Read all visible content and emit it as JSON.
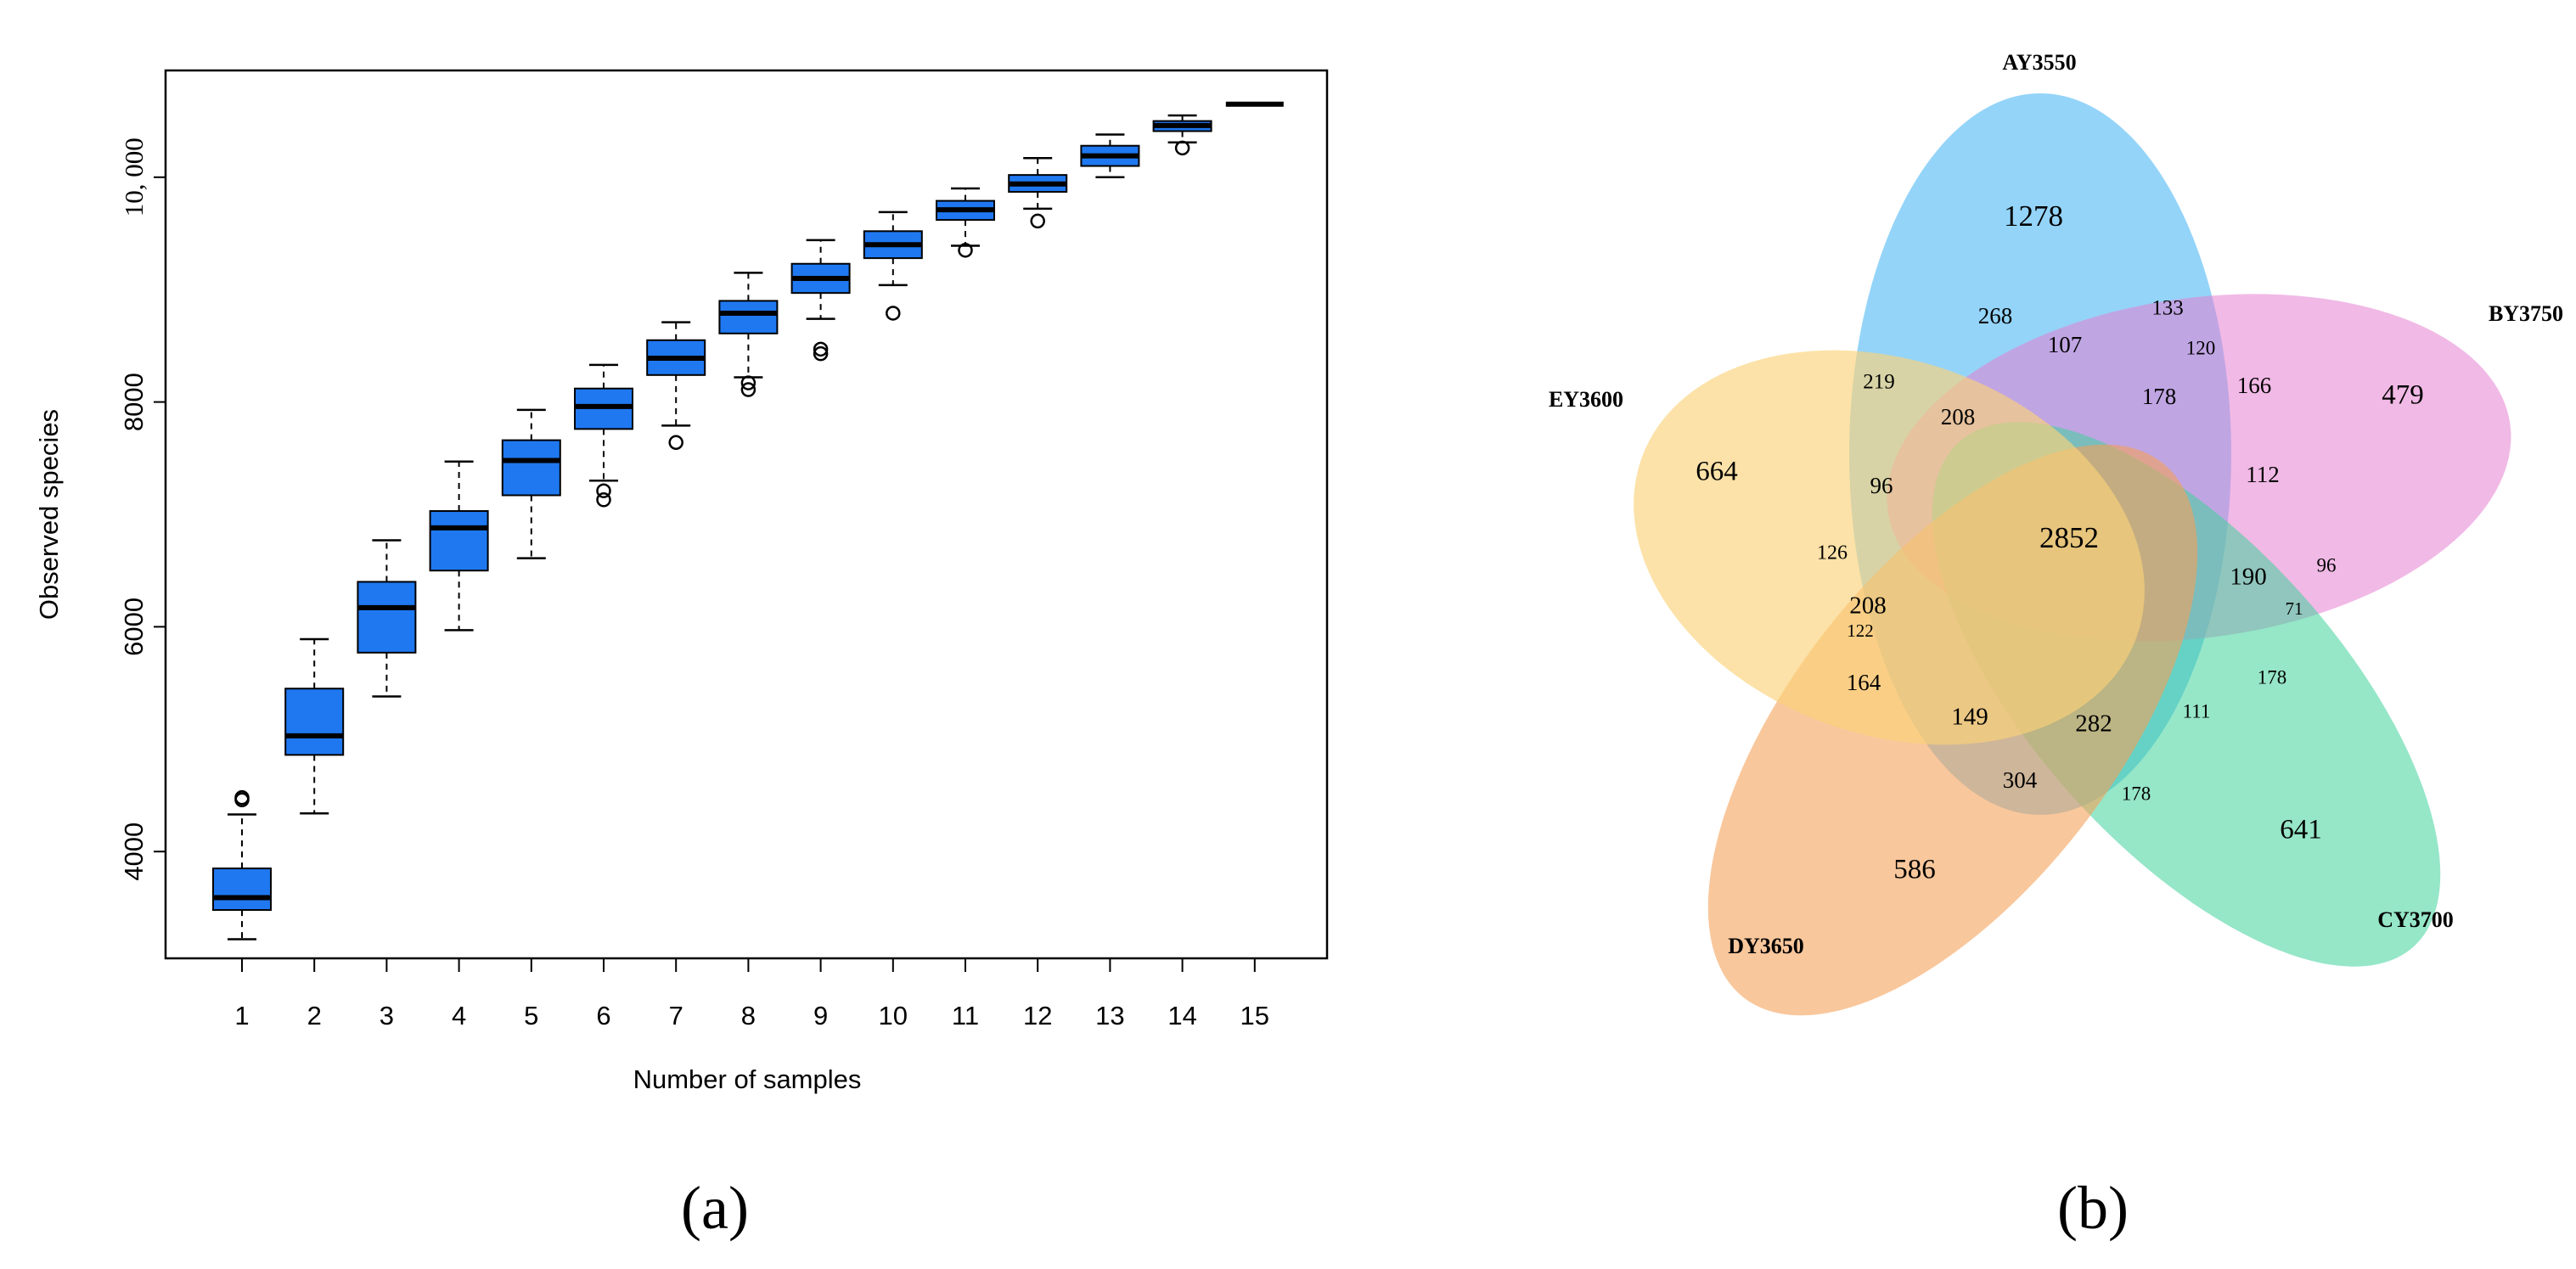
{
  "panel_a": {
    "label": "(a)",
    "chart_data": {
      "type": "box",
      "title": "",
      "xlabel": "Number of samples",
      "ylabel": "Observed species",
      "categories": [
        "1",
        "2",
        "3",
        "4",
        "5",
        "6",
        "7",
        "8",
        "9",
        "10",
        "11",
        "12",
        "13",
        "14",
        "15"
      ],
      "yticks": [
        {
          "value": 4000,
          "label": "4000"
        },
        {
          "value": 6000,
          "label": "6000"
        },
        {
          "value": 8000,
          "label": "8000"
        },
        {
          "value": 10000,
          "label": "10, 000"
        }
      ],
      "ylim": [
        3050,
        10950
      ],
      "box_color": "#1f78f0",
      "boxes": [
        {
          "category": "1",
          "whisker_low": 3220,
          "q1": 3480,
          "median": 3590,
          "q3": 3850,
          "whisker_high": 4330,
          "outliers": [
            4460,
            4480
          ]
        },
        {
          "category": "2",
          "whisker_low": 4340,
          "q1": 4860,
          "median": 5030,
          "q3": 5450,
          "whisker_high": 5890,
          "outliers": []
        },
        {
          "category": "3",
          "whisker_low": 5380,
          "q1": 5770,
          "median": 6170,
          "q3": 6400,
          "whisker_high": 6770,
          "outliers": []
        },
        {
          "category": "4",
          "whisker_low": 5970,
          "q1": 6500,
          "median": 6880,
          "q3": 7030,
          "whisker_high": 7470,
          "outliers": []
        },
        {
          "category": "5",
          "whisker_low": 6610,
          "q1": 7170,
          "median": 7480,
          "q3": 7660,
          "whisker_high": 7930,
          "outliers": []
        },
        {
          "category": "6",
          "whisker_low": 7300,
          "q1": 7760,
          "median": 7960,
          "q3": 8120,
          "whisker_high": 8330,
          "outliers": [
            7130,
            7210
          ]
        },
        {
          "category": "7",
          "whisker_low": 7790,
          "q1": 8240,
          "median": 8390,
          "q3": 8550,
          "whisker_high": 8710,
          "outliers": [
            7640
          ]
        },
        {
          "category": "8",
          "whisker_low": 8220,
          "q1": 8610,
          "median": 8790,
          "q3": 8900,
          "whisker_high": 9150,
          "outliers": [
            8110,
            8170
          ]
        },
        {
          "category": "9",
          "whisker_low": 8740,
          "q1": 8970,
          "median": 9100,
          "q3": 9230,
          "whisker_high": 9440,
          "outliers": [
            8430,
            8470
          ]
        },
        {
          "category": "10",
          "whisker_low": 9040,
          "q1": 9280,
          "median": 9400,
          "q3": 9520,
          "whisker_high": 9690,
          "outliers": [
            8790
          ]
        },
        {
          "category": "11",
          "whisker_low": 9390,
          "q1": 9620,
          "median": 9710,
          "q3": 9790,
          "whisker_high": 9900,
          "outliers": [
            9350
          ]
        },
        {
          "category": "12",
          "whisker_low": 9720,
          "q1": 9870,
          "median": 9940,
          "q3": 10020,
          "whisker_high": 10170,
          "outliers": [
            9610
          ]
        },
        {
          "category": "13",
          "whisker_low": 10000,
          "q1": 10100,
          "median": 10190,
          "q3": 10280,
          "whisker_high": 10380,
          "outliers": []
        },
        {
          "category": "14",
          "whisker_low": 10310,
          "q1": 10410,
          "median": 10460,
          "q3": 10500,
          "whisker_high": 10550,
          "outliers": [
            10260
          ]
        },
        {
          "category": "15",
          "whisker_low": 10650,
          "q1": 10650,
          "median": 10650,
          "q3": 10650,
          "whisker_high": 10650,
          "outliers": []
        }
      ]
    }
  },
  "panel_b": {
    "label": "(b)",
    "chart_data": {
      "type": "venn",
      "sets": [
        {
          "name": "AY3550",
          "color": "#4db8f5"
        },
        {
          "name": "BY3750",
          "color": "#e680d2"
        },
        {
          "name": "CY3700",
          "color": "#3fd29a"
        },
        {
          "name": "DY3650",
          "color": "#f5a25a"
        },
        {
          "name": "EY3600",
          "color": "#fad27a"
        }
      ],
      "regions": [
        {
          "value": "1278"
        },
        {
          "value": "479"
        },
        {
          "value": "641"
        },
        {
          "value": "586"
        },
        {
          "value": "664"
        },
        {
          "value": "268"
        },
        {
          "value": "133"
        },
        {
          "value": "107"
        },
        {
          "value": "120"
        },
        {
          "value": "219"
        },
        {
          "value": "178"
        },
        {
          "value": "166"
        },
        {
          "value": "208"
        },
        {
          "value": "112"
        },
        {
          "value": "96"
        },
        {
          "value": "2852"
        },
        {
          "value": "126"
        },
        {
          "value": "190"
        },
        {
          "value": "96"
        },
        {
          "value": "208"
        },
        {
          "value": "71"
        },
        {
          "value": "122"
        },
        {
          "value": "178"
        },
        {
          "value": "164"
        },
        {
          "value": "149"
        },
        {
          "value": "282"
        },
        {
          "value": "111"
        },
        {
          "value": "304"
        },
        {
          "value": "178"
        }
      ]
    }
  }
}
